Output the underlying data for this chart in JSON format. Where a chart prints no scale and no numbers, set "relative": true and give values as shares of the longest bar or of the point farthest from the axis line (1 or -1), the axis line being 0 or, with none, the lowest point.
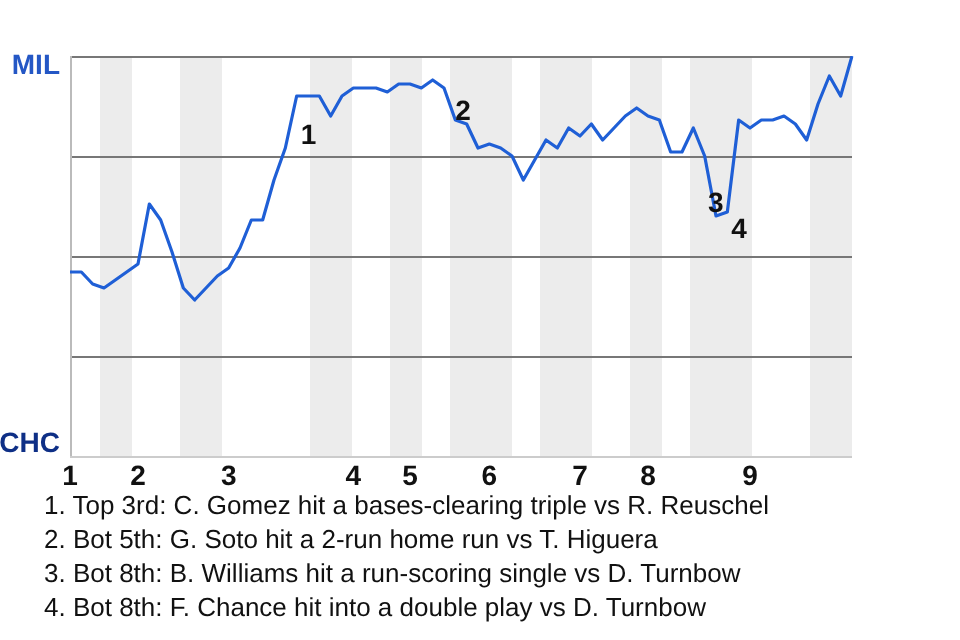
{
  "chart_data": {
    "type": "line",
    "relative": true,
    "categories": [
      "1",
      null,
      null,
      null,
      null,
      null,
      "2",
      null,
      null,
      null,
      null,
      null,
      null,
      null,
      "3",
      null,
      null,
      null,
      null,
      null,
      null,
      null,
      null,
      null,
      null,
      "4",
      null,
      null,
      null,
      null,
      "5",
      null,
      null,
      null,
      null,
      null,
      null,
      "6",
      null,
      null,
      null,
      null,
      null,
      null,
      null,
      "7",
      null,
      null,
      null,
      null,
      null,
      "8",
      null,
      null,
      null,
      null,
      null,
      null,
      null,
      null,
      "9",
      null,
      null,
      null,
      null,
      null,
      null,
      null,
      null,
      null
    ],
    "series": [
      {
        "color": "#1f5fd6",
        "values": [
          0.46,
          0.46,
          0.43,
          0.42,
          0.44,
          0.46,
          0.48,
          0.63,
          0.59,
          0.51,
          0.42,
          0.39,
          0.42,
          0.45,
          0.47,
          0.52,
          0.59,
          0.59,
          0.69,
          0.77,
          0.9,
          0.9,
          0.9,
          0.85,
          0.9,
          0.92,
          0.92,
          0.92,
          0.91,
          0.93,
          0.93,
          0.92,
          0.94,
          0.92,
          0.84,
          0.83,
          0.77,
          0.78,
          0.77,
          0.75,
          0.69,
          0.74,
          0.79,
          0.77,
          0.82,
          0.8,
          0.83,
          0.79,
          0.82,
          0.85,
          0.87,
          0.85,
          0.84,
          0.76,
          0.76,
          0.82,
          0.75,
          0.6,
          0.61,
          0.84,
          0.82,
          0.84,
          0.84,
          0.85,
          0.83,
          0.79,
          0.88,
          0.95,
          0.9,
          1
        ]
      }
    ],
    "grid": "y",
    "legend": false,
    "marker": "none",
    "line_style": "solid",
    "annotations": [
      "MIL",
      "CHC",
      "1",
      "2",
      "3",
      "4",
      "1. Top 3rd: C. Gomez hit a bases-clearing triple vs R. Reuschel",
      "2. Bot 5th: G. Soto hit a 2-run home run vs T. Higuera",
      "3. Bot 8th: B. Williams hit a run-scoring single vs D. Turnbow",
      "4. Bot 8th: F. Chance hit into a double play vs D. Turnbow"
    ]
  }
}
